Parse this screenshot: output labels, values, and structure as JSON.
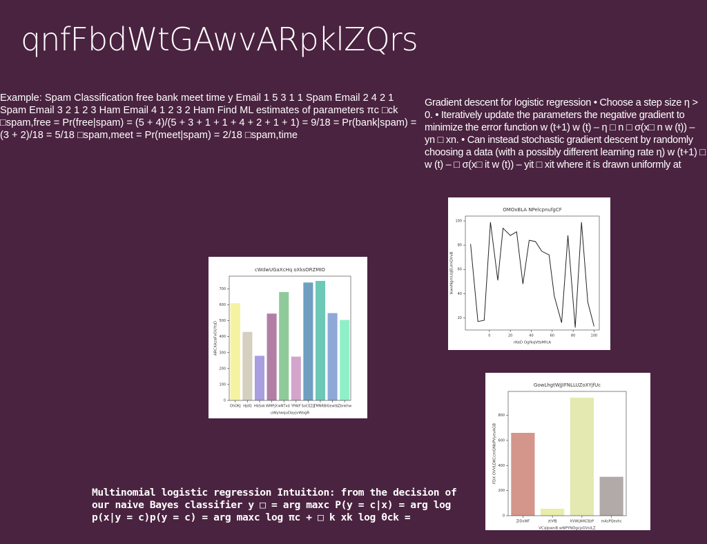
{
  "title": "qnfFbdWtGAwvARpklZQrs",
  "left_text": "Example: Spam Classification free bank meet time y Email 1 5 3 1 1 Spam Email 2 4 2 1 Spam Email 3 2 1 2 3 Ham Email 4 1 2 3 2 Ham Find ML estimates of parameters πc □ck □spam,free = Pr(free|spam) = (5 + 4)/(5 + 3 + 1 + 1 + 4 + 2 + 1 + 1) = 9/18 = Pr(bank|spam) = (3 + 2)/18 = 5/18 □spam,meet = Pr(meet|spam) = 2/18 □spam,time",
  "right_text": "Gradient descent for logistic regression • Choose a step size η > 0. • Iteratively update the parameters the negative gradient to minimize the error function w (t+1) w (t) – η □ n □ σ(x□ n w (t)) – yn □ xn. • Can instead stochastic gradient descent by randomly choosing a data (with a possibly different learning rate η) w (t+1) □ w (t) – □ σ(x□ it w (t)) – yit □ xit where it is drawn uniformly at",
  "bottom_text": "Multinomial logistic regression Intuition: from the decision of our naive Bayes classifier y □ = arg maxc P(y = c|x) = arg log p(x|y = c)p(y = c) = arg maxc log πc + □ k xk log θck =",
  "chart_data": [
    {
      "type": "bar",
      "title": "cWdwUGaXcHq oXksORZMIO",
      "xlabel": "uWylwquDayjvWogR",
      "ylabel": "ARCXAzaFxOUYsD",
      "categories": [
        "OhOKJ",
        "HjdQ",
        "HbSok",
        "WMPjX",
        "wNTxd",
        "YPAtF",
        "SoCEZg",
        "TMNRBi",
        "Gewtb",
        "Zbnkhw"
      ],
      "values": [
        610,
        430,
        280,
        545,
        680,
        275,
        740,
        750,
        548,
        505
      ],
      "colors": [
        "#f5f3a0",
        "#d5cfc0",
        "#a99ee0",
        "#b17fa6",
        "#8fcb9a",
        "#d3a4cc",
        "#6f9fc0",
        "#6cc8b7",
        "#8ea9d8",
        "#8ff0c8"
      ],
      "ylim": [
        0,
        780
      ],
      "yticks": [
        0,
        100,
        200,
        300,
        400,
        500,
        600,
        700
      ]
    },
    {
      "type": "line",
      "title": "OMOxBLA NPelcpnufgCF",
      "xlabel": "rKeD OgfkqVtbMfcA",
      "ylabel": "lkwvNgmUsJEUmQVvB",
      "x": [
        -18,
        -11,
        -5,
        1,
        8,
        13,
        20,
        26,
        32,
        38,
        44,
        50,
        57,
        62,
        69,
        75,
        82,
        88,
        94,
        100
      ],
      "values": [
        81,
        17,
        18,
        99,
        51,
        94,
        88,
        91,
        48,
        84,
        83,
        75,
        72,
        38,
        16,
        88,
        12,
        99,
        33,
        13
      ],
      "color": "#222222",
      "xlim": [
        -23,
        105
      ],
      "xticks": [
        0,
        20,
        40,
        60,
        80,
        100
      ],
      "ylim": [
        10,
        104
      ],
      "yticks": [
        20,
        40,
        60,
        80,
        100
      ]
    },
    {
      "type": "bar",
      "title": "GowLhgtWjJIFNLLUZoXYjfUc",
      "xlabel": "VCqlpwnB wNPYNDgcpGVsiLZ",
      "ylabel": "FDX OVVLDKCcmQNbPVyevAGB",
      "categories": [
        "ZIDxWF",
        "ztVfB",
        "XVWLWKCBzP",
        "mAsPQeohc"
      ],
      "values": [
        660,
        55,
        940,
        310
      ],
      "colors": [
        "#d4968a",
        "#e8eda8",
        "#e3e9b0",
        "#b1aaa8"
      ],
      "ylim": [
        0,
        990
      ],
      "yticks": [
        0,
        200,
        400,
        600,
        800
      ]
    }
  ]
}
